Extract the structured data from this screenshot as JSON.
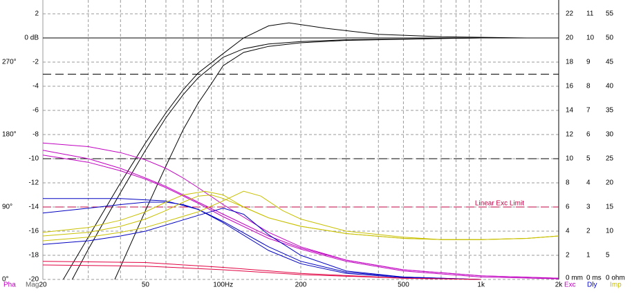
{
  "chart_data": {
    "type": "line",
    "log_x": true,
    "xlim": [
      20,
      2000
    ],
    "ylim": [
      -20,
      3.14
    ],
    "xticks": [
      20,
      50,
      {
        "value": 100,
        "label": "100Hz"
      },
      200,
      500,
      {
        "value": 1000,
        "label": "1k"
      },
      {
        "value": 2000,
        "label": "2k"
      }
    ],
    "xgrid": [
      30,
      40,
      60,
      70,
      80,
      90,
      300,
      400,
      600,
      700,
      800,
      900
    ],
    "yticks": [
      2,
      {
        "value": 0,
        "label": "0 dB"
      },
      -2,
      -4,
      -6,
      -8,
      -10,
      -12,
      -14,
      -16,
      -18,
      -20
    ],
    "grid": true,
    "axis_names": [
      {
        "label": "Pha",
        "color": "#c000c0"
      },
      {
        "label": "Mag",
        "color": "#606060"
      },
      {
        "label": "Exc",
        "color": "#c000c0"
      },
      {
        "label": "Dly",
        "color": "#0000c0"
      },
      {
        "label": "Imp",
        "color": "#c8c000"
      }
    ],
    "phase_ticks": [
      {
        "value": -2,
        "label": "270°"
      },
      {
        "value": -8,
        "label": "180°"
      },
      {
        "value": -14,
        "label": "90°"
      },
      {
        "value": -20,
        "label": "0°"
      }
    ],
    "y2lim": [
      0,
      23.14
    ],
    "y2ticks": [
      {
        "value": 0,
        "label": "0 mm"
      },
      2,
      4,
      6,
      8,
      10,
      12,
      14,
      16,
      18,
      20,
      22
    ],
    "y3lim": [
      0,
      11.57
    ],
    "y3ticks": [
      {
        "value": 0,
        "label": "0 ms"
      },
      1,
      2,
      3,
      4,
      5,
      6,
      7,
      8,
      9,
      10,
      11
    ],
    "y4lim": [
      0,
      57.85
    ],
    "y4ticks": [
      {
        "value": 0,
        "label": "0 ohm"
      },
      5,
      10,
      15,
      20,
      25,
      30,
      35,
      40,
      45,
      50,
      55
    ],
    "reference_lines": [
      {
        "value": 0,
        "color": "#000000",
        "dash": false
      },
      {
        "value": -3,
        "color": "#000000",
        "dash": true
      },
      {
        "value": -10,
        "color": "#000000",
        "dash": true
      },
      {
        "value": -14,
        "color": "#c00040",
        "dash": true,
        "label": "Linear Exc Limit"
      }
    ],
    "series": [
      {
        "color": "#000000",
        "x": [
          24,
          30,
          40,
          50,
          60,
          70,
          80,
          100,
          120,
          150,
          180,
          250,
          400,
          700,
          1500
        ],
        "values": [
          -20,
          -16.5,
          -12,
          -8.7,
          -6.2,
          -4.3,
          -2.9,
          -1.3,
          0,
          1.0,
          1.25,
          0.8,
          0.3,
          0.1,
          0
        ]
      },
      {
        "color": "#000000",
        "x": [
          26,
          30,
          40,
          50,
          60,
          70,
          80,
          100,
          120,
          150,
          200,
          300,
          700,
          1000
        ],
        "values": [
          -20,
          -17.5,
          -12.8,
          -9.3,
          -6.6,
          -4.7,
          -3.3,
          -1.6,
          -0.9,
          -0.5,
          -0.3,
          -0.15,
          -0.05,
          0
        ]
      },
      {
        "color": "#000000",
        "x": [
          38,
          45,
          50,
          60,
          70,
          80,
          90,
          100,
          120,
          150,
          200,
          300,
          700,
          1000
        ],
        "values": [
          -20,
          -16.5,
          -14.3,
          -10.6,
          -7.6,
          -5.4,
          -3.8,
          -2.3,
          -1.2,
          -0.7,
          -0.4,
          -0.2,
          -0.05,
          0
        ]
      },
      {
        "color": "#c000c0",
        "x": [
          20,
          30,
          40,
          50,
          60,
          70,
          80,
          100,
          150,
          200,
          300,
          500,
          1000,
          2000
        ],
        "values": [
          -8.7,
          -9.0,
          -9.5,
          -10.1,
          -10.8,
          -11.6,
          -12.4,
          -13.8,
          -16.1,
          -17.3,
          -18.4,
          -19.2,
          -19.7,
          -19.9
        ]
      },
      {
        "color": "#c000c0",
        "x": [
          20,
          30,
          40,
          50,
          60,
          70,
          80,
          100,
          150,
          200,
          300,
          500,
          1000,
          2000
        ],
        "values": [
          -9.3,
          -10.0,
          -10.8,
          -11.6,
          -12.3,
          -13.0,
          -13.6,
          -14.6,
          -16.4,
          -17.4,
          -18.4,
          -19.2,
          -19.7,
          -19.9
        ]
      },
      {
        "color": "#c000c0",
        "x": [
          20,
          30,
          40,
          50,
          60,
          70,
          80,
          100,
          150,
          200,
          300,
          500,
          1000,
          2000
        ],
        "values": [
          -9.7,
          -10.3,
          -11.0,
          -11.7,
          -12.4,
          -13.1,
          -13.7,
          -14.8,
          -16.6,
          -17.5,
          -18.5,
          -19.3,
          -19.8,
          -19.95
        ]
      },
      {
        "color": "#0000c0",
        "x": [
          20,
          40,
          60,
          80,
          100,
          150,
          200,
          300,
          500,
          1000
        ],
        "values": [
          -13.3,
          -13.3,
          -13.5,
          -14.2,
          -15.3,
          -17.6,
          -18.7,
          -19.5,
          -19.85,
          -20
        ]
      },
      {
        "color": "#0000c0",
        "x": [
          20,
          30,
          40,
          50,
          60,
          70,
          80,
          100,
          150,
          200,
          300,
          500,
          1000
        ],
        "values": [
          -14.5,
          -14.1,
          -13.8,
          -13.6,
          -13.6,
          -13.8,
          -14.2,
          -15.2,
          -17.3,
          -18.5,
          -19.4,
          -19.8,
          -20
        ]
      },
      {
        "color": "#0000c0",
        "x": [
          20,
          30,
          40,
          50,
          60,
          80,
          100,
          120,
          150,
          200,
          300,
          500,
          1000
        ],
        "values": [
          -17.1,
          -16.8,
          -16.4,
          -16.0,
          -15.5,
          -14.7,
          -14.1,
          -14.6,
          -16.3,
          -18.0,
          -19.3,
          -19.8,
          -20
        ]
      },
      {
        "color": "#c8c000",
        "x": [
          20,
          30,
          40,
          50,
          60,
          70,
          85,
          100,
          120,
          150,
          200,
          300,
          500,
          700,
          1000,
          1500,
          2000
        ],
        "values": [
          -16.1,
          -15.7,
          -15.1,
          -14.4,
          -13.6,
          -13.0,
          -12.7,
          -13.0,
          -14.0,
          -14.9,
          -15.6,
          -16.2,
          -16.6,
          -16.7,
          -16.7,
          -16.6,
          -16.4
        ]
      },
      {
        "color": "#c8c000",
        "x": [
          20,
          30,
          40,
          50,
          60,
          70,
          80,
          90,
          100,
          120,
          150,
          200,
          300,
          500,
          700,
          1000,
          1500,
          2000
        ],
        "values": [
          -16.4,
          -16.1,
          -15.6,
          -15.0,
          -14.3,
          -13.6,
          -13.1,
          -13.0,
          -13.3,
          -14.0,
          -14.9,
          -15.6,
          -16.2,
          -16.6,
          -16.7,
          -16.7,
          -16.6,
          -16.4
        ]
      },
      {
        "color": "#c8c000",
        "x": [
          20,
          30,
          40,
          50,
          60,
          80,
          100,
          120,
          140,
          170,
          200,
          300,
          500,
          700,
          1000,
          1500,
          2000
        ],
        "values": [
          -16.8,
          -16.5,
          -16.1,
          -15.7,
          -15.2,
          -14.4,
          -13.5,
          -12.7,
          -13.1,
          -14.3,
          -15.0,
          -16.0,
          -16.5,
          -16.7,
          -16.7,
          -16.6,
          -16.4
        ]
      },
      {
        "color": "#e00040",
        "x": [
          20,
          50,
          100,
          200,
          500,
          1000
        ],
        "values": [
          -18.5,
          -18.6,
          -19.0,
          -19.5,
          -19.9,
          -20
        ]
      },
      {
        "color": "#e00040",
        "x": [
          20,
          50,
          100,
          200,
          500,
          1000
        ],
        "values": [
          -18.8,
          -18.9,
          -19.2,
          -19.6,
          -19.9,
          -20
        ]
      }
    ]
  }
}
